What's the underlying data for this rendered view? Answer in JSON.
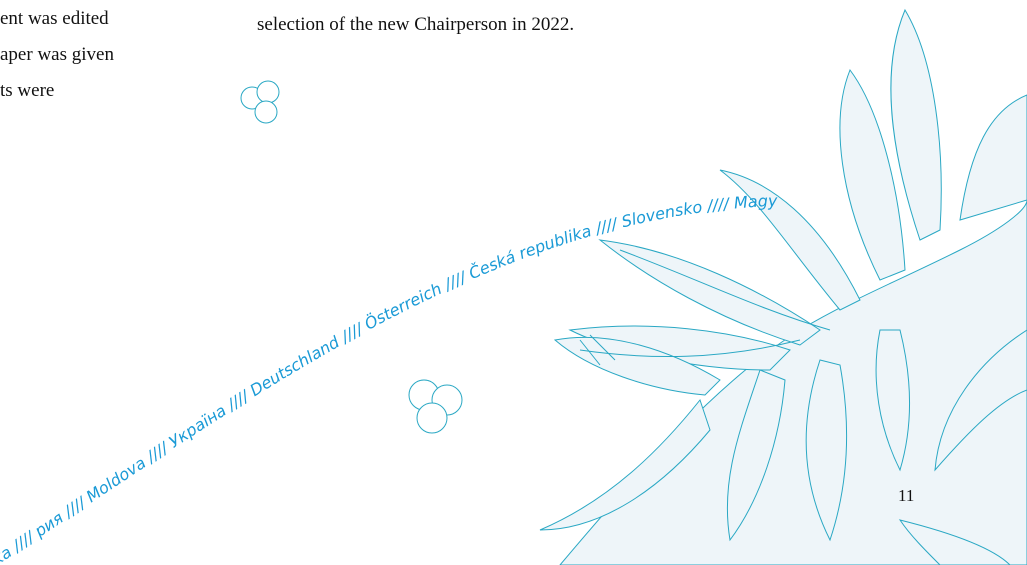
{
  "body": {
    "left_lines": [
      "ent was edited",
      "aper was given",
      "ts were"
    ],
    "right_line": "selection of the new Chairperson in 2022."
  },
  "ribbon": {
    "text": "ska //// рия //// Moldova //// Україна //// Deutschland //// Österreich //// Česká republika //// Slovensko //// Magy"
  },
  "page_number": "11"
}
